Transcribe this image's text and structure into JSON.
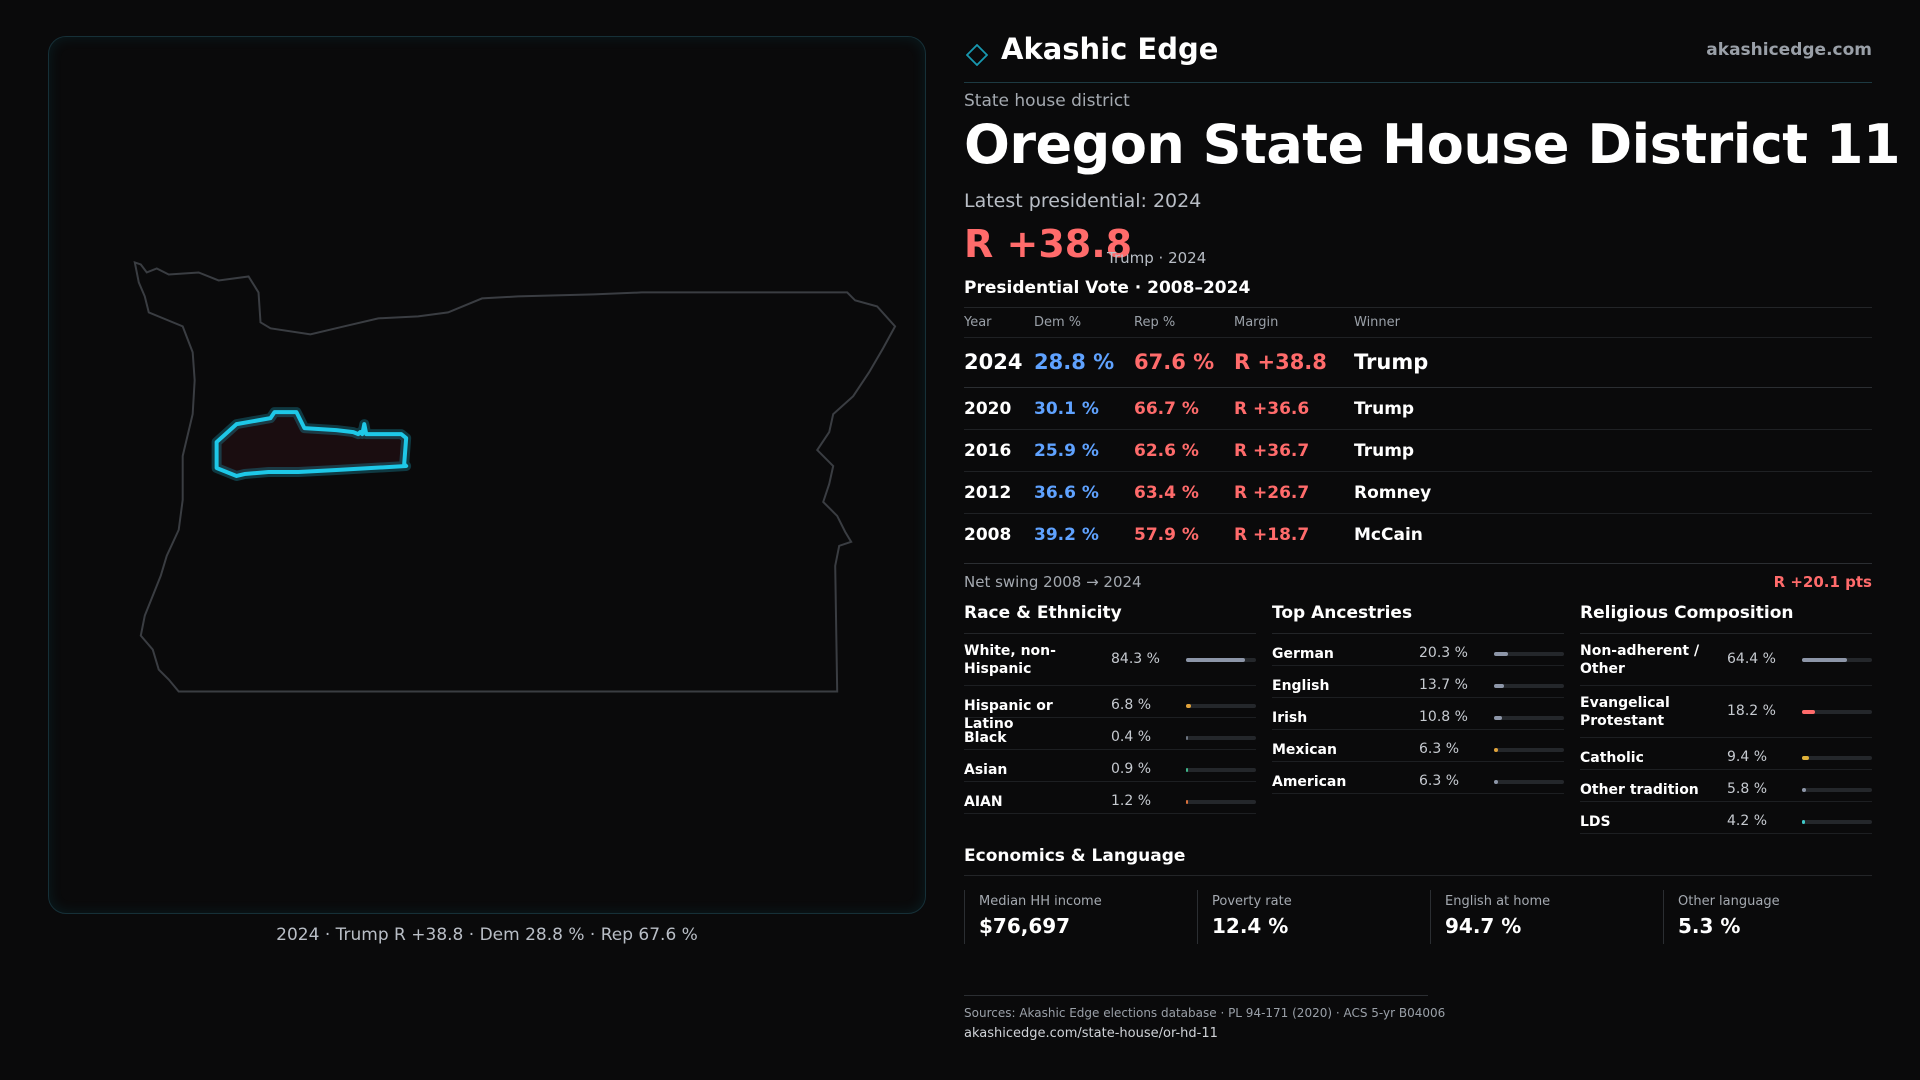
{
  "map": {
    "caption": "2024 · Trump R +38.8 · Dem 28.8 % · Rep 67.6 %",
    "state_outline_color": "#3a3d42",
    "district_outline_color": "#1ec8e8",
    "district_fill_color": "#1a0d10"
  },
  "brand": {
    "name": "Akashic Edge",
    "url": "akashicedge.com",
    "logo_icon": "diamond-outline-icon"
  },
  "header": {
    "kicker": "State house district",
    "title": "Oregon State House District 11",
    "latest": "Latest presidential: 2024",
    "margin": "R +38.8",
    "margin_sub": "Trump · 2024"
  },
  "vote": {
    "heading": "Presidential Vote · 2008–2024",
    "columns": [
      "Year",
      "Dem %",
      "Rep %",
      "Margin",
      "Winner"
    ],
    "rows": [
      {
        "year": "2024",
        "dem": "28.8 %",
        "rep": "67.6 %",
        "margin": "R +38.8",
        "winner": "Trump"
      },
      {
        "year": "2020",
        "dem": "30.1 %",
        "rep": "66.7 %",
        "margin": "R +36.6",
        "winner": "Trump"
      },
      {
        "year": "2016",
        "dem": "25.9 %",
        "rep": "62.6 %",
        "margin": "R +36.7",
        "winner": "Trump"
      },
      {
        "year": "2012",
        "dem": "36.6 %",
        "rep": "63.4 %",
        "margin": "R +26.7",
        "winner": "Romney"
      },
      {
        "year": "2008",
        "dem": "39.2 %",
        "rep": "57.9 %",
        "margin": "R +18.7",
        "winner": "McCain"
      }
    ],
    "swing_label": "Net swing 2008 → 2024",
    "swing_value": "R +20.1 pts"
  },
  "race": {
    "title": "Race & Ethnicity",
    "items": [
      {
        "label": "White, non-Hispanic",
        "value": "84.3 %",
        "fraction": 0.843,
        "color": "#8d96a8"
      },
      {
        "label": "Hispanic or Latino",
        "value": "6.8 %",
        "fraction": 0.068,
        "color": "#e0a23a"
      },
      {
        "label": "Black",
        "value": "0.4 %",
        "fraction": 0.004,
        "color": "#6c7480"
      },
      {
        "label": "Asian",
        "value": "0.9 %",
        "fraction": 0.009,
        "color": "#3fb58a"
      },
      {
        "label": "AIAN",
        "value": "1.2 %",
        "fraction": 0.012,
        "color": "#d9703b"
      }
    ]
  },
  "ancestry": {
    "title": "Top Ancestries",
    "items": [
      {
        "label": "German",
        "value": "20.3 %",
        "fraction": 0.203,
        "color": "#8d96a8"
      },
      {
        "label": "English",
        "value": "13.7 %",
        "fraction": 0.137,
        "color": "#8d96a8"
      },
      {
        "label": "Irish",
        "value": "10.8 %",
        "fraction": 0.108,
        "color": "#8d96a8"
      },
      {
        "label": "Mexican",
        "value": "6.3 %",
        "fraction": 0.063,
        "color": "#e0a23a"
      },
      {
        "label": "American",
        "value": "6.3 %",
        "fraction": 0.063,
        "color": "#8d96a8"
      }
    ]
  },
  "religion": {
    "title": "Religious Composition",
    "items": [
      {
        "label": "Non-adherent / Other",
        "value": "64.4 %",
        "fraction": 0.644,
        "color": "#8d96a8"
      },
      {
        "label": "Evangelical Protestant",
        "value": "18.2 %",
        "fraction": 0.182,
        "color": "#ff6b6b"
      },
      {
        "label": "Catholic",
        "value": "9.4 %",
        "fraction": 0.094,
        "color": "#e0b23a"
      },
      {
        "label": "Other tradition",
        "value": "5.8 %",
        "fraction": 0.058,
        "color": "#8d96a8"
      },
      {
        "label": "LDS",
        "value": "4.2 %",
        "fraction": 0.042,
        "color": "#3fc8c8"
      }
    ]
  },
  "economics": {
    "title": "Economics & Language",
    "cells": [
      {
        "label": "Median HH income",
        "value": "$76,697"
      },
      {
        "label": "Poverty rate",
        "value": "12.4 %"
      },
      {
        "label": "English at home",
        "value": "94.7 %"
      },
      {
        "label": "Other language",
        "value": "5.3 %"
      }
    ]
  },
  "footer": {
    "sources": "Sources: Akashic Edge elections database · PL 94-171 (2020) · ACS 5-yr B04006",
    "url": "akashicedge.com/state-house/or-hd-11"
  }
}
